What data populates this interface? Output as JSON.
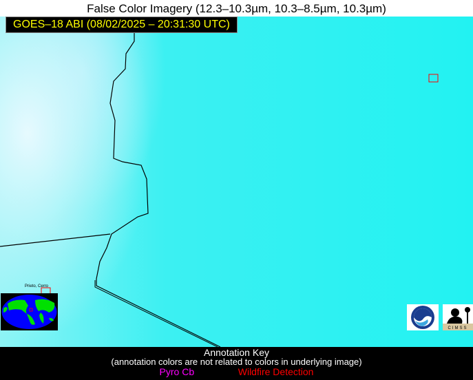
{
  "title": "False Color Imagery (12.3–10.3µm, 10.3–8.5µm, 10.3µm)",
  "satellite_label": "GOES–18 ABI (08/02/2025 – 20:31:30 UTC)",
  "place_label": "Prieto, Cerro",
  "logos": [
    "NOAA",
    "CIMSS"
  ],
  "annotation_key": {
    "heading": "Annotation Key",
    "note": "(annotation colors are not related to colors in underlying image)",
    "items": [
      {
        "label": "Pyro Cb",
        "color": "#ff00ff"
      },
      {
        "label": "Wildfire Detection",
        "color": "#ff0000"
      }
    ]
  },
  "colors": {
    "background": "#22f2f2",
    "detection_box": "#ff0000",
    "border": "#000000"
  }
}
